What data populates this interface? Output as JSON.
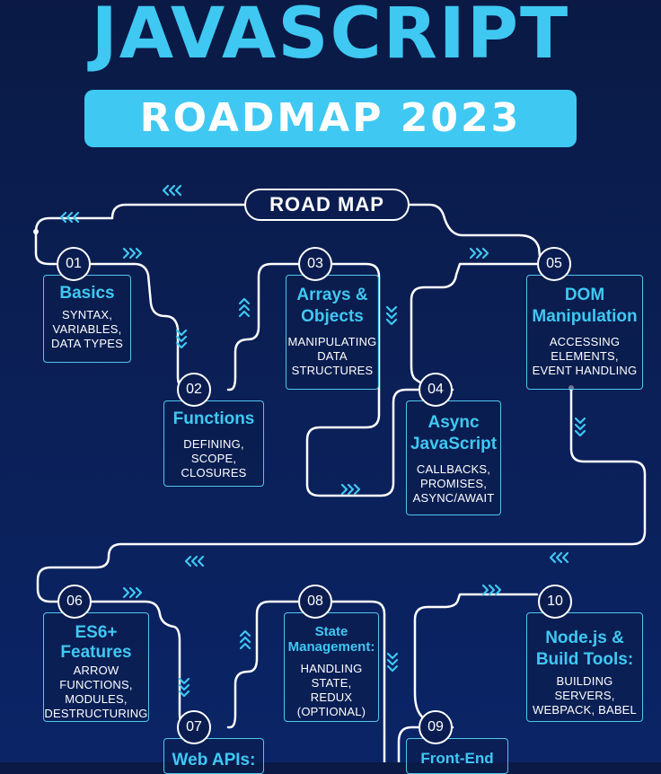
{
  "title": "JAVASCRIPT",
  "subtitle": "ROADMAP 2023",
  "roadmap_label": "ROAD MAP",
  "steps": [
    {
      "num": "01",
      "title": "Basics",
      "desc": [
        "SYNTAX,",
        "VARIABLES,",
        "DATA TYPES"
      ]
    },
    {
      "num": "02",
      "title": "Functions",
      "desc": [
        "DEFINING,",
        "SCOPE,",
        "CLOSURES"
      ]
    },
    {
      "num": "03",
      "title": [
        "Arrays &",
        "Objects"
      ],
      "desc": [
        "MANIPULATING",
        "DATA",
        "STRUCTURES"
      ]
    },
    {
      "num": "04",
      "title": [
        "Async",
        "JavaScript"
      ],
      "desc": [
        "CALLBACKS,",
        "PROMISES,",
        "ASYNC/AWAIT"
      ]
    },
    {
      "num": "05",
      "title": [
        "DOM",
        "Manipulation"
      ],
      "desc": [
        "ACCESSING",
        "ELEMENTS,",
        "EVENT HANDLING"
      ]
    },
    {
      "num": "06",
      "title": [
        "ES6+",
        "Features"
      ],
      "desc": [
        "ARROW",
        "FUNCTIONS,",
        "MODULES,",
        "DESTRUCTURING"
      ]
    },
    {
      "num": "07",
      "title": "Web APIs:",
      "desc": []
    },
    {
      "num": "08",
      "title": [
        "State",
        "Management:"
      ],
      "desc": [
        "HANDLING",
        "STATE,",
        "REDUX",
        "(OPTIONAL)"
      ]
    },
    {
      "num": "09",
      "title": "Front-End",
      "desc": []
    },
    {
      "num": "10",
      "title": [
        "Node.js &",
        "Build Tools:"
      ],
      "desc": [
        "BUILDING",
        "SERVERS,",
        "WEBPACK, BABEL"
      ]
    }
  ],
  "colors": {
    "accent": "#3fc8f2",
    "background": "#0b1d50",
    "line": "#ffffff"
  }
}
